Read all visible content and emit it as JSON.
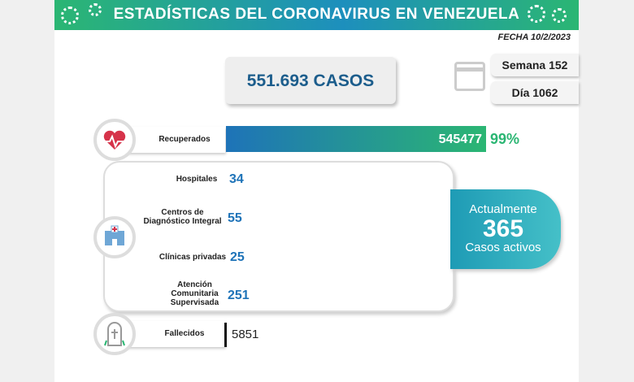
{
  "header": {
    "title": "ESTADÍSTICAS DEL CORONAVIRUS EN VENEZUELA"
  },
  "fecha": "FECHA 10/2/2023",
  "casos": "551.693 CASOS",
  "semana": "Semana 152",
  "dia": "Día 1062",
  "recuperados": {
    "label": "Recuperados",
    "value": "545477",
    "percent": "99%"
  },
  "hospitalization": [
    {
      "label": "Hospitales",
      "value": "34"
    },
    {
      "label": "Centros de Diagnóstico Integral",
      "value": "55"
    },
    {
      "label": "Clínicas privadas",
      "value": "25"
    },
    {
      "label": "Atención Comunitaria Supervisada",
      "value": "251"
    }
  ],
  "activos": {
    "line1": "Actualmente",
    "value": "365",
    "line3": "Casos activos"
  },
  "fallecidos": {
    "label": "Fallecidos",
    "value": "5851"
  },
  "colors": {
    "green": "#2bb673",
    "blue": "#1e73b8",
    "teal": "#1e9bb5"
  }
}
